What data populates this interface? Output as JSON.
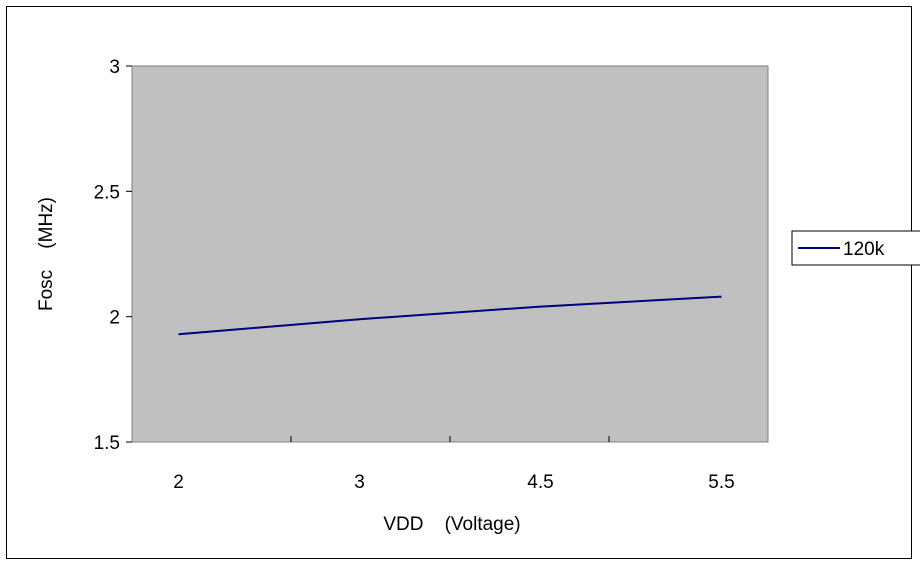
{
  "chart_data": {
    "type": "line",
    "title": "",
    "xlabel": "VDD    (Voltage)",
    "ylabel": "Fosc    (MHz)",
    "categories": [
      "2",
      "3",
      "4.5",
      "5.5"
    ],
    "ylim": [
      1.5,
      3
    ],
    "yticks": [
      "1.5",
      "2",
      "2.5",
      "3"
    ],
    "grid": false,
    "legend": "right",
    "plot_background": "#C0C0C0",
    "series": [
      {
        "name": "120k",
        "color": "#000080",
        "values": [
          1.93,
          1.99,
          2.04,
          2.08
        ]
      }
    ]
  }
}
